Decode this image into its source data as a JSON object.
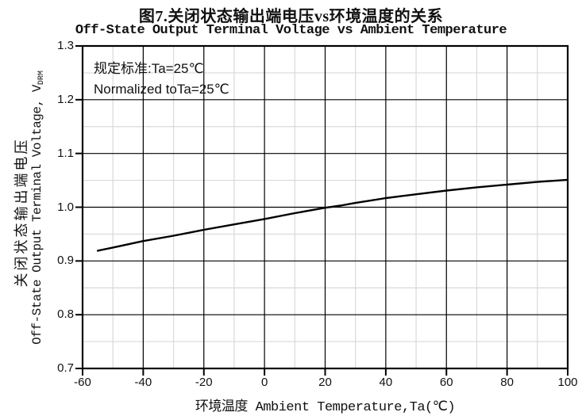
{
  "figure": {
    "title_cn": "图7.关闭状态输出端电压vs环境温度的关系",
    "title_en": "Off-State Output Terminal Voltage vs Ambient Temperature"
  },
  "annotation": {
    "line1": "规定标准:Ta=25℃",
    "line2": "Normalized toTa=25℃"
  },
  "y_axis": {
    "label_cn": "关闭状态输出端电压",
    "label_en": "Off-State Output Terminal Voltage, V",
    "label_en_sub": "DRM",
    "tick_labels": [
      "1.3",
      "1.2",
      "1.1",
      "1.0",
      "0.9",
      "0.8",
      "0.7"
    ]
  },
  "x_axis": {
    "label": "环境温度 Ambient Temperature,Ta(℃)",
    "tick_labels": [
      "-60",
      "-40",
      "-20",
      "0",
      "20",
      "40",
      "60",
      "80",
      "100"
    ]
  },
  "chart_data": {
    "type": "line",
    "title": "图7.关闭状态输出端电压vs环境温度的关系",
    "subtitle": "Off-State Output Terminal Voltage vs Ambient Temperature",
    "xlabel": "环境温度 Ambient Temperature,Ta(℃)",
    "ylabel": "关闭状态输出端电压 Off-State Output Terminal Voltage, VDRM",
    "xlim": [
      -60,
      100
    ],
    "ylim": [
      0.7,
      1.3
    ],
    "x_major_ticks": [
      -60,
      -40,
      -20,
      0,
      20,
      40,
      60,
      80,
      100
    ],
    "y_major_ticks": [
      1.3,
      1.2,
      1.1,
      1.0,
      0.9,
      0.8,
      0.7
    ],
    "x_minor_step": 10,
    "y_minor_step": 0.05,
    "grid": "major and minor gridlines on, full box border",
    "legend": "none",
    "series": [
      {
        "name": "VDRM normalized to Ta=25℃",
        "x": [
          -55,
          -50,
          -40,
          -30,
          -20,
          -10,
          0,
          10,
          20,
          25,
          30,
          40,
          50,
          60,
          70,
          80,
          90,
          100
        ],
        "y": [
          0.919,
          0.925,
          0.937,
          0.947,
          0.958,
          0.968,
          0.978,
          0.989,
          0.999,
          1.003,
          1.008,
          1.017,
          1.024,
          1.031,
          1.037,
          1.042,
          1.047,
          1.051
        ]
      }
    ],
    "colors": {
      "curve": "#000000",
      "major_grid": "#000000",
      "minor_grid": "#d9d9d9",
      "border": "#000000",
      "tick": "#000000",
      "text": "#111111",
      "background": "#ffffff"
    }
  }
}
